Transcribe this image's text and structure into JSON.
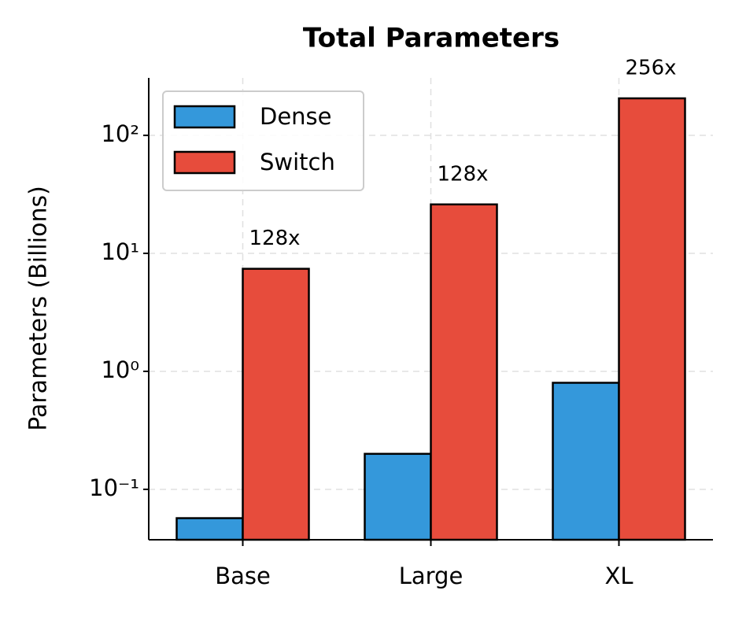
{
  "chart_data": {
    "type": "bar",
    "title": "Total Parameters",
    "y_label": "Parameters (Billions)",
    "categories": [
      "Base",
      "Large",
      "XL"
    ],
    "series": [
      {
        "name": "Dense",
        "color": "#3498db",
        "values": [
          0.057,
          0.2,
          0.8
        ]
      },
      {
        "name": "Switch",
        "color": "#e74c3c",
        "values": [
          7.4,
          26,
          206
        ]
      }
    ],
    "annotations": [
      "128x",
      "128x",
      "256x"
    ],
    "ylim": [
      0.0374,
      307
    ],
    "log_y": true,
    "yticks": [
      {
        "value": 0.1,
        "label": "10⁻¹"
      },
      {
        "value": 1,
        "label": "10⁰"
      },
      {
        "value": 10,
        "label": "10¹"
      },
      {
        "value": 100,
        "label": "10²"
      }
    ],
    "grid": true,
    "legend": "upper left"
  }
}
